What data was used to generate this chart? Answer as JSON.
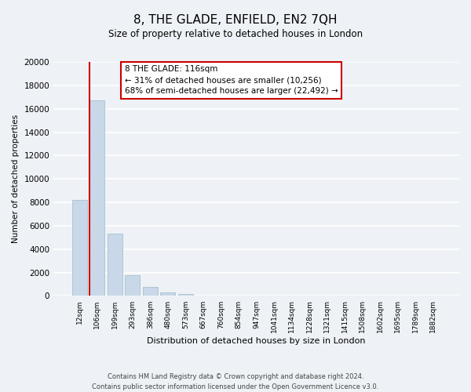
{
  "title": "8, THE GLADE, ENFIELD, EN2 7QH",
  "subtitle": "Size of property relative to detached houses in London",
  "xlabel": "Distribution of detached houses by size in London",
  "ylabel": "Number of detached properties",
  "categories": [
    "12sqm",
    "106sqm",
    "199sqm",
    "293sqm",
    "386sqm",
    "480sqm",
    "573sqm",
    "667sqm",
    "760sqm",
    "854sqm",
    "947sqm",
    "1041sqm",
    "1134sqm",
    "1228sqm",
    "1321sqm",
    "1415sqm",
    "1508sqm",
    "1602sqm",
    "1695sqm",
    "1789sqm",
    "1882sqm"
  ],
  "values": [
    8200,
    16700,
    5300,
    1800,
    750,
    280,
    180,
    0,
    0,
    0,
    0,
    0,
    0,
    0,
    0,
    0,
    0,
    0,
    0,
    0,
    0
  ],
  "bar_color": "#c8d8e8",
  "bar_edge_color": "#a8bfcf",
  "vline_color": "#cc0000",
  "ylim": [
    0,
    20000
  ],
  "yticks": [
    0,
    2000,
    4000,
    6000,
    8000,
    10000,
    12000,
    14000,
    16000,
    18000,
    20000
  ],
  "annotation_text": "8 THE GLADE: 116sqm\n← 31% of detached houses are smaller (10,256)\n68% of semi-detached houses are larger (22,492) →",
  "annotation_box_color": "#ffffff",
  "annotation_box_edge": "#cc0000",
  "footer_line1": "Contains HM Land Registry data © Crown copyright and database right 2024.",
  "footer_line2": "Contains public sector information licensed under the Open Government Licence v3.0.",
  "background_color": "#eef2f6",
  "plot_background": "#eef2f6",
  "grid_color": "#ffffff"
}
